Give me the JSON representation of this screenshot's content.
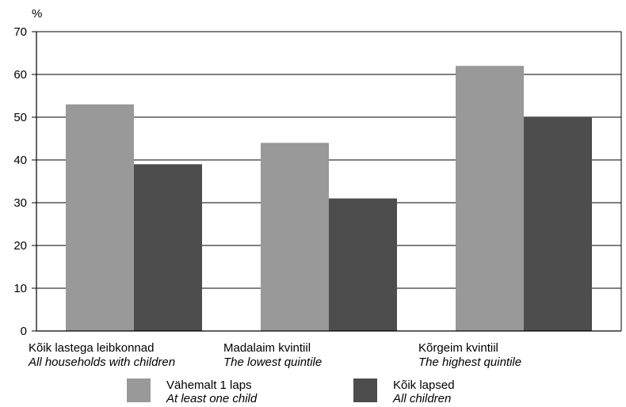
{
  "chart_data": {
    "type": "bar",
    "y_unit_label": "%",
    "ylim": [
      0,
      70
    ],
    "yticks": [
      0,
      10,
      20,
      30,
      40,
      50,
      60,
      70
    ],
    "grid": true,
    "legend_position": "bottom",
    "categories": [
      {
        "label_et": "Kõik lastega leibkonnad",
        "label_en": "All households with children"
      },
      {
        "label_et": "Madalaim kvintiil",
        "label_en": "The lowest quintile"
      },
      {
        "label_et": "Kõrgeim kvintiil",
        "label_en": "The highest quintile"
      }
    ],
    "series": [
      {
        "name_et": "Vähemalt 1 laps",
        "name_en": "At least one child",
        "color": "#999999",
        "values": [
          53,
          44,
          62
        ]
      },
      {
        "name_et": "Kõik lapsed",
        "name_en": "All children",
        "color": "#4d4d4d",
        "values": [
          39,
          31,
          50
        ]
      }
    ]
  }
}
